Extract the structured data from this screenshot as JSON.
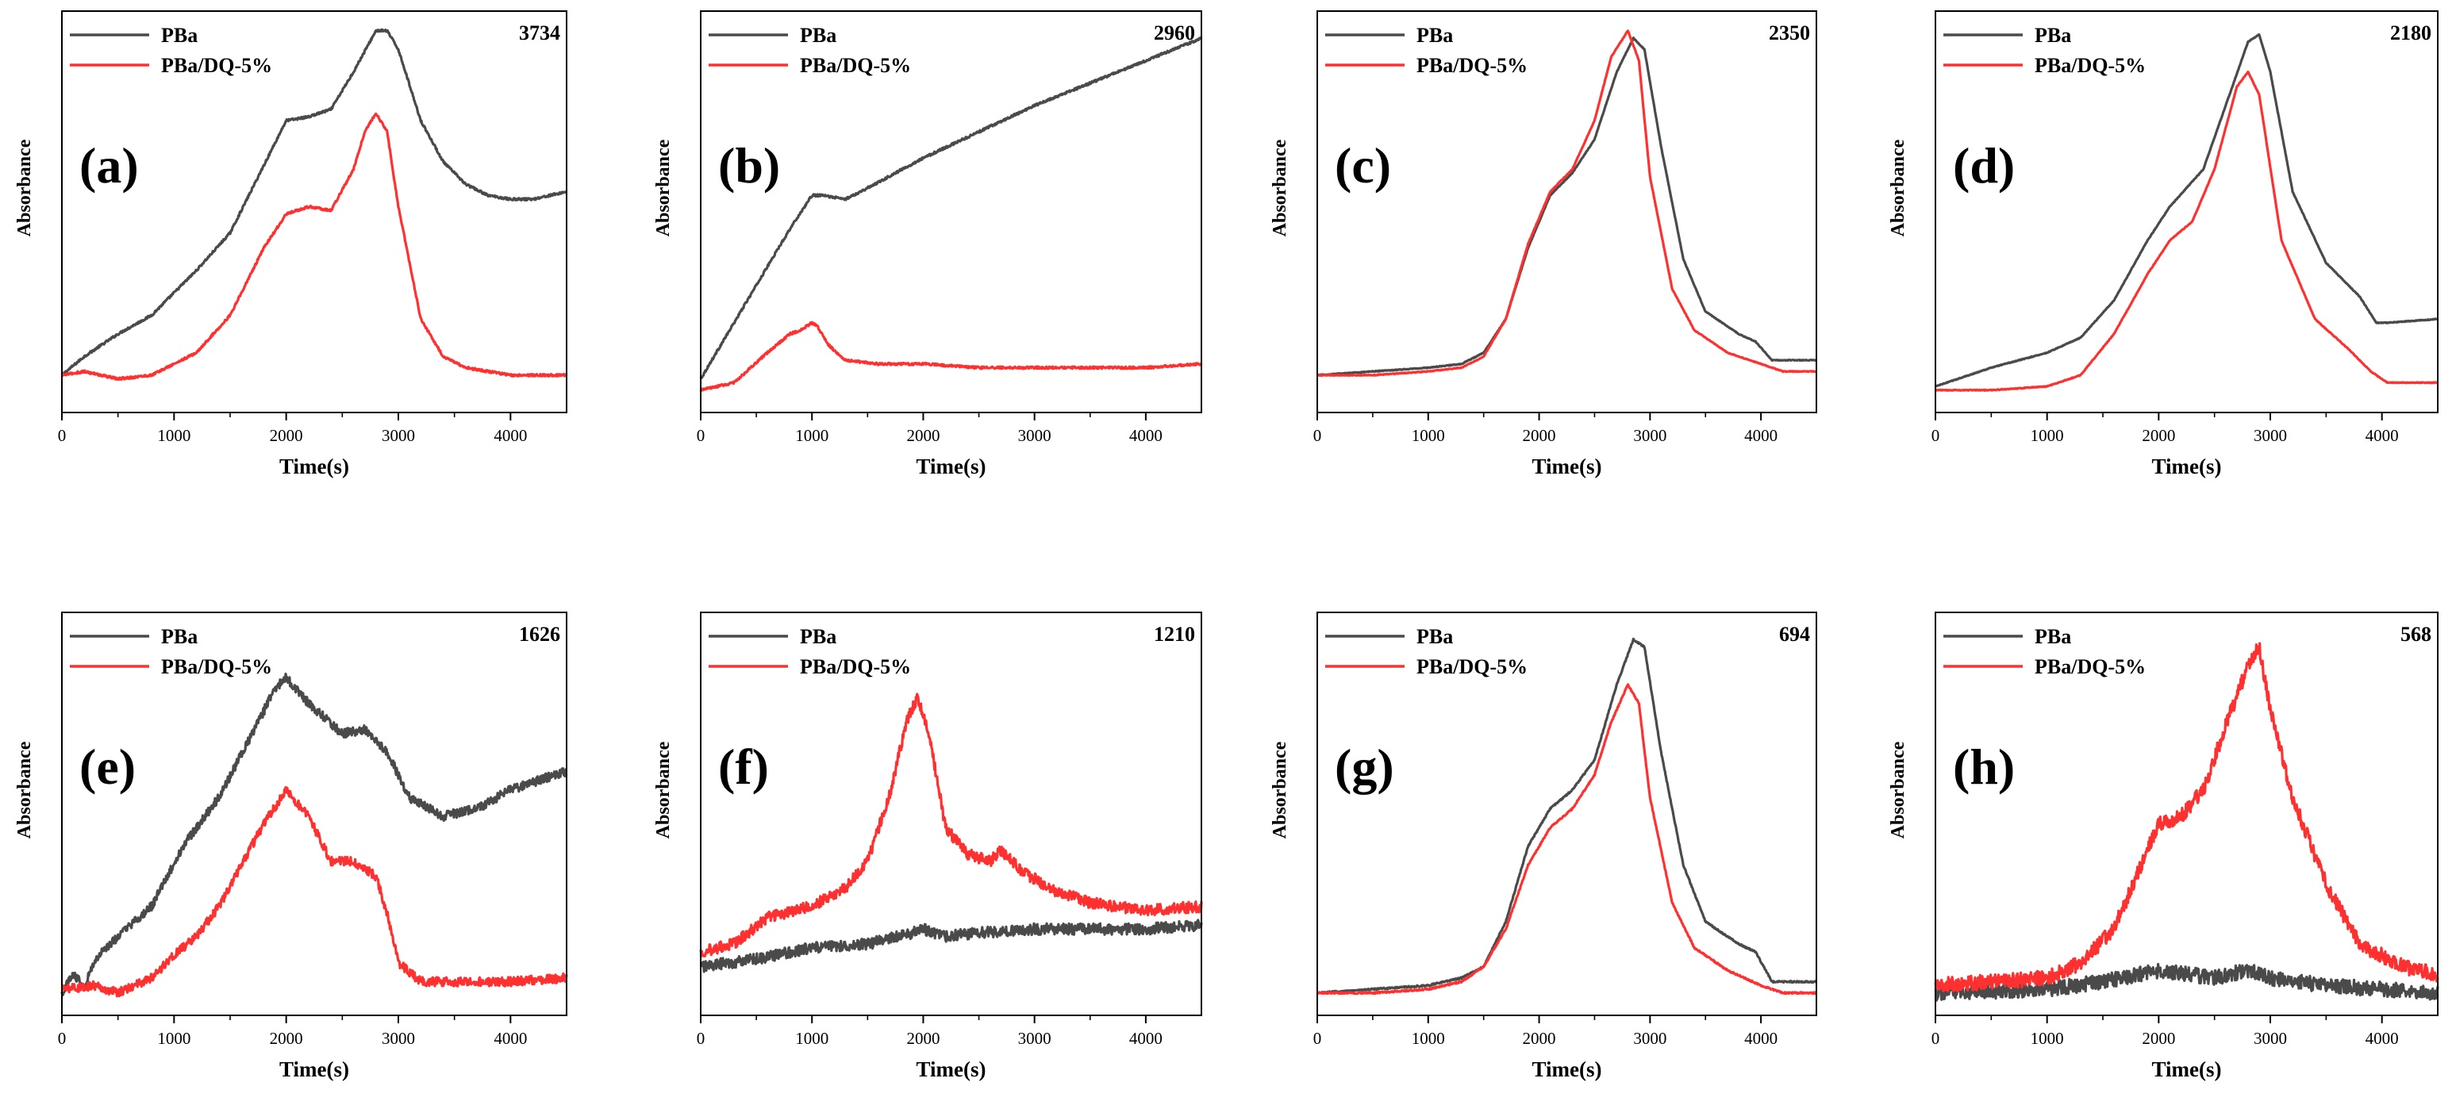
{
  "figure": {
    "colors": {
      "pba": "#4a4a4a",
      "dq": "#ff3030",
      "axis": "#000000"
    }
  },
  "chart_data": [
    {
      "panel": "(a)",
      "wavenumber": "3734",
      "type": "line",
      "xlabel": "Time(s)",
      "ylabel": "Absorbance",
      "xlim": [
        0,
        4500
      ],
      "xticks": [
        0,
        1000,
        2000,
        3000,
        4000
      ],
      "ylim": [
        0,
        1
      ],
      "noise": 0.003,
      "legend_color_order": [
        "pba",
        "dq"
      ],
      "series": [
        {
          "name": "PBa",
          "color_key": "pba",
          "x": [
            0,
            200,
            500,
            800,
            1200,
            1500,
            1800,
            2000,
            2200,
            2400,
            2600,
            2800,
            2900,
            3000,
            3200,
            3400,
            3600,
            3800,
            4000,
            4200,
            4500
          ],
          "y": [
            0.07,
            0.12,
            0.18,
            0.23,
            0.35,
            0.45,
            0.63,
            0.75,
            0.76,
            0.78,
            0.88,
            0.99,
            0.99,
            0.94,
            0.75,
            0.64,
            0.58,
            0.55,
            0.54,
            0.54,
            0.56
          ]
        },
        {
          "name": "PBa/DQ-5%",
          "color_key": "dq",
          "x": [
            0,
            200,
            500,
            800,
            1000,
            1200,
            1500,
            1800,
            2000,
            2200,
            2400,
            2600,
            2700,
            2800,
            2900,
            3000,
            3200,
            3400,
            3600,
            3800,
            4000,
            4200,
            4500
          ],
          "y": [
            0.07,
            0.08,
            0.06,
            0.07,
            0.1,
            0.13,
            0.23,
            0.41,
            0.5,
            0.52,
            0.51,
            0.62,
            0.72,
            0.77,
            0.72,
            0.52,
            0.22,
            0.12,
            0.09,
            0.08,
            0.07,
            0.07,
            0.07
          ]
        }
      ]
    },
    {
      "panel": "(b)",
      "wavenumber": "2960",
      "type": "line",
      "xlabel": "Time(s)",
      "ylabel": "Absorbance",
      "xlim": [
        0,
        4500
      ],
      "xticks": [
        0,
        1000,
        2000,
        3000,
        4000
      ],
      "ylim": [
        0,
        1
      ],
      "noise": 0.003,
      "legend_color_order": [
        "pba",
        "dq"
      ],
      "series": [
        {
          "name": "PBa",
          "color_key": "pba",
          "x": [
            0,
            200,
            400,
            600,
            800,
            1000,
            1100,
            1300,
            1500,
            2000,
            2500,
            3000,
            3500,
            4000,
            4500
          ],
          "y": [
            0.06,
            0.16,
            0.26,
            0.36,
            0.46,
            0.55,
            0.55,
            0.54,
            0.57,
            0.65,
            0.72,
            0.79,
            0.85,
            0.91,
            0.97
          ]
        },
        {
          "name": "PBa/DQ-5%",
          "color_key": "dq",
          "x": [
            0,
            300,
            600,
            800,
            900,
            1000,
            1050,
            1150,
            1300,
            1600,
            2000,
            2500,
            3000,
            3500,
            4000,
            4500
          ],
          "y": [
            0.03,
            0.05,
            0.13,
            0.18,
            0.19,
            0.21,
            0.2,
            0.15,
            0.11,
            0.1,
            0.1,
            0.09,
            0.09,
            0.09,
            0.09,
            0.1
          ]
        }
      ]
    },
    {
      "panel": "(c)",
      "wavenumber": "2350",
      "type": "line",
      "xlabel": "Time(s)",
      "ylabel": "Absorbance",
      "xlim": [
        0,
        4500
      ],
      "xticks": [
        0,
        1000,
        2000,
        3000,
        4000
      ],
      "ylim": [
        0,
        1
      ],
      "noise": 0.001,
      "legend_color_order": [
        "pba",
        "dq"
      ],
      "series": [
        {
          "name": "PBa",
          "color_key": "pba",
          "x": [
            0,
            500,
            1000,
            1300,
            1500,
            1700,
            1900,
            2100,
            2300,
            2500,
            2700,
            2850,
            2950,
            3100,
            3300,
            3500,
            3800,
            3950,
            4100,
            4500
          ],
          "y": [
            0.07,
            0.08,
            0.09,
            0.1,
            0.13,
            0.22,
            0.41,
            0.55,
            0.61,
            0.7,
            0.88,
            0.97,
            0.94,
            0.68,
            0.38,
            0.24,
            0.18,
            0.16,
            0.11,
            0.11
          ]
        },
        {
          "name": "PBa/DQ-5%",
          "color_key": "dq",
          "x": [
            0,
            500,
            1000,
            1300,
            1500,
            1700,
            1900,
            2100,
            2300,
            2500,
            2650,
            2800,
            2900,
            3000,
            3200,
            3400,
            3700,
            4000,
            4200,
            4500
          ],
          "y": [
            0.07,
            0.07,
            0.08,
            0.09,
            0.12,
            0.22,
            0.42,
            0.56,
            0.62,
            0.75,
            0.92,
            0.99,
            0.91,
            0.6,
            0.3,
            0.19,
            0.13,
            0.1,
            0.08,
            0.08
          ]
        }
      ]
    },
    {
      "panel": "(d)",
      "wavenumber": "2180",
      "type": "line",
      "xlabel": "Time(s)",
      "ylabel": "Absorbance",
      "xlim": [
        0,
        4500
      ],
      "xticks": [
        0,
        1000,
        2000,
        3000,
        4000
      ],
      "ylim": [
        0,
        1
      ],
      "noise": 0.001,
      "legend_color_order": [
        "pba",
        "dq"
      ],
      "series": [
        {
          "name": "PBa",
          "color_key": "pba",
          "x": [
            0,
            500,
            1000,
            1300,
            1600,
            1900,
            2100,
            2400,
            2600,
            2800,
            2900,
            3000,
            3200,
            3500,
            3800,
            3950,
            4050,
            4500
          ],
          "y": [
            0.04,
            0.09,
            0.13,
            0.17,
            0.27,
            0.43,
            0.52,
            0.62,
            0.79,
            0.96,
            0.98,
            0.88,
            0.56,
            0.37,
            0.28,
            0.21,
            0.21,
            0.22
          ]
        },
        {
          "name": "PBa/DQ-5%",
          "color_key": "dq",
          "x": [
            0,
            500,
            1000,
            1300,
            1600,
            1900,
            2100,
            2300,
            2500,
            2700,
            2800,
            2900,
            3100,
            3400,
            3700,
            3900,
            4050,
            4500
          ],
          "y": [
            0.03,
            0.03,
            0.04,
            0.07,
            0.18,
            0.34,
            0.43,
            0.48,
            0.62,
            0.84,
            0.88,
            0.82,
            0.43,
            0.22,
            0.14,
            0.08,
            0.05,
            0.05
          ]
        }
      ]
    },
    {
      "panel": "(e)",
      "wavenumber": "1626",
      "type": "line",
      "xlabel": "Time(s)",
      "ylabel": "Absorbance",
      "xlim": [
        0,
        4500
      ],
      "xticks": [
        0,
        1000,
        2000,
        3000,
        4000
      ],
      "ylim": [
        0,
        1
      ],
      "noise": 0.012,
      "legend_color_order": [
        "pba",
        "dq"
      ],
      "series": [
        {
          "name": "PBa",
          "color_key": "pba",
          "x": [
            0,
            100,
            200,
            300,
            500,
            800,
            1100,
            1400,
            1700,
            1900,
            2000,
            2200,
            2500,
            2700,
            2900,
            3100,
            3400,
            3700,
            4000,
            4300,
            4500
          ],
          "y": [
            0.03,
            0.08,
            0.05,
            0.12,
            0.18,
            0.26,
            0.43,
            0.55,
            0.72,
            0.84,
            0.87,
            0.8,
            0.72,
            0.73,
            0.67,
            0.55,
            0.5,
            0.52,
            0.57,
            0.6,
            0.62
          ]
        },
        {
          "name": "PBa/DQ-5%",
          "color_key": "dq",
          "x": [
            0,
            300,
            500,
            800,
            1000,
            1200,
            1400,
            1600,
            1800,
            2000,
            2200,
            2400,
            2600,
            2800,
            2900,
            3000,
            3200,
            3500,
            4000,
            4500
          ],
          "y": [
            0.04,
            0.05,
            0.03,
            0.07,
            0.13,
            0.18,
            0.26,
            0.37,
            0.48,
            0.57,
            0.5,
            0.38,
            0.38,
            0.34,
            0.24,
            0.11,
            0.06,
            0.06,
            0.06,
            0.07
          ]
        }
      ]
    },
    {
      "panel": "(f)",
      "wavenumber": "1210",
      "type": "line",
      "xlabel": "Time(s)",
      "ylabel": "Absorbance",
      "xlim": [
        0,
        4500
      ],
      "xticks": [
        0,
        1000,
        2000,
        3000,
        4000
      ],
      "ylim": [
        0,
        1
      ],
      "noise": 0.015,
      "legend_color_order": [
        "pba",
        "dq"
      ],
      "series": [
        {
          "name": "PBa",
          "color_key": "pba",
          "x": [
            0,
            500,
            1000,
            1500,
            1900,
            2000,
            2200,
            2500,
            3000,
            3500,
            4000,
            4500
          ],
          "y": [
            0.1,
            0.12,
            0.15,
            0.16,
            0.19,
            0.2,
            0.18,
            0.19,
            0.2,
            0.2,
            0.2,
            0.21
          ]
        },
        {
          "name": "PBa/DQ-5%",
          "color_key": "dq",
          "x": [
            0,
            300,
            600,
            1000,
            1300,
            1500,
            1700,
            1850,
            1950,
            2050,
            2200,
            2400,
            2600,
            2700,
            2900,
            3200,
            3500,
            4000,
            4500
          ],
          "y": [
            0.14,
            0.16,
            0.23,
            0.26,
            0.31,
            0.38,
            0.56,
            0.75,
            0.82,
            0.72,
            0.47,
            0.4,
            0.38,
            0.41,
            0.35,
            0.3,
            0.27,
            0.25,
            0.26
          ]
        }
      ]
    },
    {
      "panel": "(g)",
      "wavenumber": "694",
      "type": "line",
      "xlabel": "Time(s)",
      "ylabel": "Absorbance",
      "xlim": [
        0,
        4500
      ],
      "xticks": [
        0,
        1000,
        2000,
        3000,
        4000
      ],
      "ylim": [
        0,
        1
      ],
      "noise": 0.002,
      "legend_color_order": [
        "pba",
        "dq"
      ],
      "series": [
        {
          "name": "PBa",
          "color_key": "pba",
          "x": [
            0,
            500,
            1000,
            1300,
            1500,
            1700,
            1900,
            2100,
            2300,
            2500,
            2700,
            2850,
            2950,
            3100,
            3300,
            3500,
            3800,
            3950,
            4100,
            4500
          ],
          "y": [
            0.03,
            0.04,
            0.05,
            0.07,
            0.1,
            0.22,
            0.42,
            0.52,
            0.57,
            0.65,
            0.85,
            0.97,
            0.95,
            0.67,
            0.37,
            0.22,
            0.16,
            0.14,
            0.06,
            0.06
          ]
        },
        {
          "name": "PBa/DQ-5%",
          "color_key": "dq",
          "x": [
            0,
            500,
            1000,
            1300,
            1500,
            1700,
            1900,
            2100,
            2300,
            2500,
            2650,
            2800,
            2900,
            3000,
            3200,
            3400,
            3700,
            4000,
            4200,
            4500
          ],
          "y": [
            0.03,
            0.03,
            0.04,
            0.06,
            0.1,
            0.2,
            0.37,
            0.47,
            0.52,
            0.61,
            0.75,
            0.85,
            0.8,
            0.55,
            0.27,
            0.15,
            0.09,
            0.05,
            0.03,
            0.03
          ]
        }
      ]
    },
    {
      "panel": "(h)",
      "wavenumber": "568",
      "type": "line",
      "xlabel": "Time(s)",
      "ylabel": "Absorbance",
      "xlim": [
        0,
        4500
      ],
      "xticks": [
        0,
        1000,
        2000,
        3000,
        4000
      ],
      "ylim": [
        0,
        1
      ],
      "noise": 0.02,
      "legend_color_order": [
        "pba",
        "dq"
      ],
      "series": [
        {
          "name": "PBa",
          "color_key": "pba",
          "x": [
            0,
            1000,
            1500,
            2000,
            2500,
            2800,
            3000,
            3500,
            4000,
            4500
          ],
          "y": [
            0.03,
            0.04,
            0.06,
            0.09,
            0.07,
            0.09,
            0.07,
            0.05,
            0.04,
            0.03
          ]
        },
        {
          "name": "PBa/DQ-5%",
          "color_key": "dq",
          "x": [
            0,
            500,
            1000,
            1300,
            1600,
            1800,
            2000,
            2200,
            2400,
            2600,
            2800,
            2900,
            3000,
            3200,
            3500,
            3800,
            4200,
            4500
          ],
          "y": [
            0.05,
            0.06,
            0.07,
            0.11,
            0.2,
            0.34,
            0.48,
            0.5,
            0.57,
            0.74,
            0.9,
            0.95,
            0.78,
            0.55,
            0.32,
            0.16,
            0.1,
            0.08
          ]
        }
      ]
    }
  ]
}
